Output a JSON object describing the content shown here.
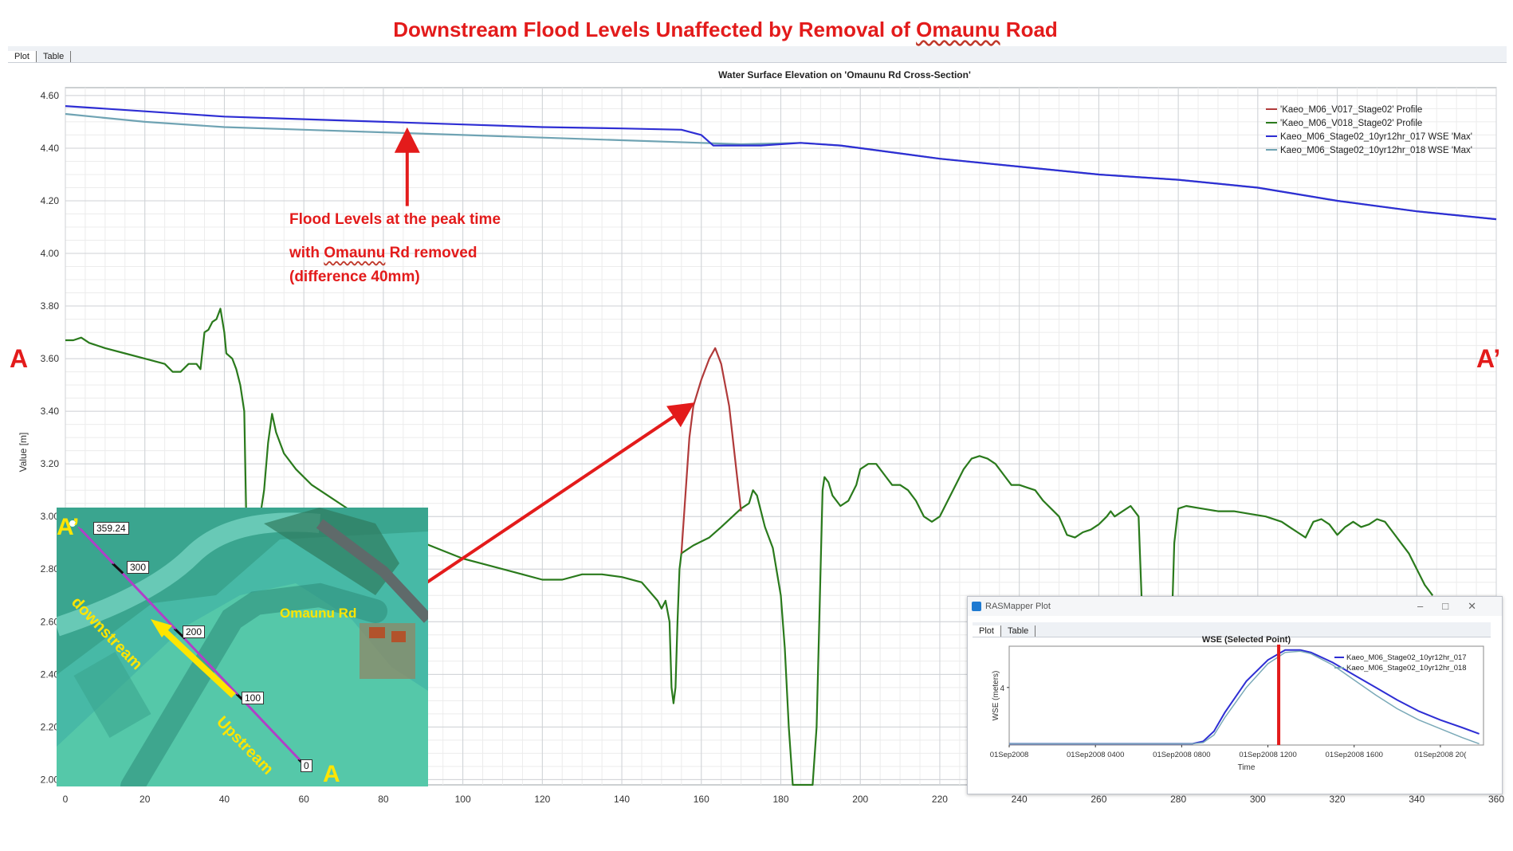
{
  "banner": {
    "pre": "Downstream Flood Levels Unaffected by Removal of ",
    "road": "Omaunu",
    "post": " Road"
  },
  "tabs": {
    "plot": "Plot",
    "table": "Table"
  },
  "labels": {
    "a": "A",
    "a_prime": "A’"
  },
  "annotation": {
    "line1": "Flood Levels at the peak time",
    "line2_pre": "with  ",
    "line2_road": "Omaunu",
    "line2_post": "  Rd removed",
    "line3": "(difference 40mm)"
  },
  "inset": {
    "ticks": [
      "359.24",
      "300",
      "200",
      "100",
      "0"
    ],
    "a_prime": "A’",
    "a": "A",
    "downstream": "downstream",
    "upstream": "Upstream",
    "road_label": "Omaunu  Rd",
    "colors": {
      "water": "#4bbfb0",
      "field": "#57c7a8",
      "line": "#b040c8",
      "yellow": "#ffe500"
    }
  },
  "mini": {
    "window_title": "RASMapper Plot",
    "tabs": {
      "plot": "Plot",
      "table": "Table"
    }
  },
  "chart_data": [
    {
      "type": "line",
      "title": "Water Surface Elevation on 'Omaunu Rd Cross-Section'",
      "xlabel": "",
      "ylabel": "Value [m]",
      "xlim": [
        0,
        360
      ],
      "ylim": [
        1.98,
        4.63
      ],
      "xticks": [
        0,
        20,
        40,
        60,
        80,
        100,
        120,
        140,
        160,
        180,
        200,
        220,
        240,
        260,
        280,
        300,
        320,
        340,
        360
      ],
      "yticks": [
        2.0,
        2.2,
        2.4,
        2.6,
        2.8,
        3.0,
        3.2,
        3.4,
        3.6,
        3.8,
        4.0,
        4.2,
        4.4,
        4.6
      ],
      "grid": true,
      "legend_position": "top-right",
      "series": [
        {
          "name": "'Kaeo_M06_V017_Stage02' Profile",
          "color": "#b03a3a",
          "points": [
            [
              155,
              2.86
            ],
            [
              157,
              3.3
            ],
            [
              158,
              3.42
            ],
            [
              160,
              3.52
            ],
            [
              162,
              3.6
            ],
            [
              163.5,
              3.64
            ],
            [
              165,
              3.58
            ],
            [
              167,
              3.42
            ],
            [
              169,
              3.15
            ],
            [
              170,
              3.02
            ]
          ]
        },
        {
          "name": "'Kaeo_M06_V018_Stage02' Profile",
          "color": "#2a7a1c",
          "points": [
            [
              0,
              3.67
            ],
            [
              2,
              3.67
            ],
            [
              4,
              3.68
            ],
            [
              6,
              3.66
            ],
            [
              10,
              3.64
            ],
            [
              15,
              3.62
            ],
            [
              20,
              3.6
            ],
            [
              25,
              3.58
            ],
            [
              27,
              3.55
            ],
            [
              29,
              3.55
            ],
            [
              31,
              3.58
            ],
            [
              33,
              3.58
            ],
            [
              34,
              3.56
            ],
            [
              35,
              3.7
            ],
            [
              36,
              3.71
            ],
            [
              37,
              3.74
            ],
            [
              38,
              3.75
            ],
            [
              39,
              3.79
            ],
            [
              40,
              3.7
            ],
            [
              40.5,
              3.62
            ],
            [
              42,
              3.6
            ],
            [
              43,
              3.56
            ],
            [
              44,
              3.5
            ],
            [
              45,
              3.4
            ],
            [
              45.5,
              3.0
            ],
            [
              46,
              2.4
            ],
            [
              46.5,
              2.1
            ],
            [
              47,
              2.1
            ],
            [
              48,
              2.6
            ],
            [
              49,
              3.0
            ],
            [
              50,
              3.1
            ],
            [
              51,
              3.28
            ],
            [
              52,
              3.39
            ],
            [
              53,
              3.32
            ],
            [
              55,
              3.24
            ],
            [
              58,
              3.18
            ],
            [
              62,
              3.12
            ],
            [
              66,
              3.08
            ],
            [
              70,
              3.04
            ],
            [
              74,
              3.0
            ],
            [
              78,
              2.96
            ],
            [
              82,
              2.94
            ],
            [
              86,
              2.92
            ],
            [
              90,
              2.9
            ],
            [
              95,
              2.87
            ],
            [
              100,
              2.84
            ],
            [
              105,
              2.82
            ],
            [
              110,
              2.8
            ],
            [
              115,
              2.78
            ],
            [
              120,
              2.76
            ],
            [
              125,
              2.76
            ],
            [
              130,
              2.78
            ],
            [
              135,
              2.78
            ],
            [
              140,
              2.77
            ],
            [
              145,
              2.75
            ],
            [
              149,
              2.68
            ],
            [
              150,
              2.65
            ],
            [
              151,
              2.68
            ],
            [
              152,
              2.6
            ],
            [
              152.5,
              2.35
            ],
            [
              153,
              2.29
            ],
            [
              153.5,
              2.35
            ],
            [
              154,
              2.6
            ],
            [
              154.5,
              2.8
            ],
            [
              155,
              2.86
            ],
            [
              158,
              2.89
            ],
            [
              162,
              2.92
            ],
            [
              165,
              2.96
            ],
            [
              170,
              3.03
            ],
            [
              172,
              3.05
            ],
            [
              173,
              3.1
            ],
            [
              174,
              3.08
            ],
            [
              176,
              2.96
            ],
            [
              178,
              2.88
            ],
            [
              180,
              2.7
            ],
            [
              181,
              2.5
            ],
            [
              182,
              2.2
            ],
            [
              183,
              1.98
            ],
            [
              185,
              1.98
            ],
            [
              186,
              1.98
            ],
            [
              187,
              1.98
            ],
            [
              188,
              1.98
            ],
            [
              189,
              2.2
            ],
            [
              190,
              2.8
            ],
            [
              190.5,
              3.1
            ],
            [
              191,
              3.15
            ],
            [
              192,
              3.13
            ],
            [
              193,
              3.08
            ],
            [
              195,
              3.04
            ],
            [
              197,
              3.06
            ],
            [
              199,
              3.12
            ],
            [
              200,
              3.18
            ],
            [
              202,
              3.2
            ],
            [
              204,
              3.2
            ],
            [
              206,
              3.16
            ],
            [
              208,
              3.12
            ],
            [
              210,
              3.12
            ],
            [
              212,
              3.1
            ],
            [
              214,
              3.06
            ],
            [
              216,
              3.0
            ],
            [
              218,
              2.98
            ],
            [
              220,
              3.0
            ],
            [
              222,
              3.06
            ],
            [
              224,
              3.12
            ],
            [
              226,
              3.18
            ],
            [
              228,
              3.22
            ],
            [
              230,
              3.23
            ],
            [
              232,
              3.22
            ],
            [
              234,
              3.2
            ],
            [
              236,
              3.16
            ],
            [
              238,
              3.12
            ],
            [
              240,
              3.12
            ],
            [
              242,
              3.11
            ],
            [
              244,
              3.1
            ],
            [
              246,
              3.06
            ],
            [
              248,
              3.03
            ],
            [
              250,
              3.0
            ],
            [
              252,
              2.93
            ],
            [
              254,
              2.92
            ],
            [
              256,
              2.94
            ],
            [
              258,
              2.95
            ],
            [
              260,
              2.97
            ],
            [
              262,
              3.0
            ],
            [
              263,
              3.02
            ],
            [
              264,
              3.0
            ],
            [
              266,
              3.02
            ],
            [
              268,
              3.04
            ],
            [
              269,
              3.02
            ],
            [
              270,
              3.0
            ],
            [
              271,
              2.6
            ],
            [
              272,
              2.2
            ],
            [
              274,
              2.05
            ],
            [
              276,
              2.1
            ],
            [
              278,
              2.4
            ],
            [
              279,
              2.9
            ],
            [
              280,
              3.03
            ],
            [
              282,
              3.04
            ],
            [
              286,
              3.03
            ],
            [
              290,
              3.02
            ],
            [
              294,
              3.02
            ],
            [
              298,
              3.01
            ],
            [
              302,
              3.0
            ],
            [
              306,
              2.98
            ],
            [
              308,
              2.96
            ],
            [
              310,
              2.94
            ],
            [
              312,
              2.92
            ],
            [
              314,
              2.98
            ],
            [
              316,
              2.99
            ],
            [
              318,
              2.97
            ],
            [
              320,
              2.93
            ],
            [
              322,
              2.96
            ],
            [
              324,
              2.98
            ],
            [
              326,
              2.96
            ],
            [
              328,
              2.97
            ],
            [
              330,
              2.99
            ],
            [
              332,
              2.98
            ],
            [
              334,
              2.94
            ],
            [
              336,
              2.9
            ],
            [
              338,
              2.86
            ],
            [
              340,
              2.8
            ],
            [
              342,
              2.74
            ],
            [
              344,
              2.7
            ]
          ]
        },
        {
          "name": "Kaeo_M06_Stage02_10yr12hr_017 WSE 'Max'",
          "color": "#2e2ed4",
          "points": [
            [
              0,
              4.56
            ],
            [
              20,
              4.54
            ],
            [
              40,
              4.52
            ],
            [
              60,
              4.51
            ],
            [
              80,
              4.5
            ],
            [
              100,
              4.49
            ],
            [
              120,
              4.48
            ],
            [
              140,
              4.475
            ],
            [
              155,
              4.47
            ],
            [
              160,
              4.45
            ],
            [
              163,
              4.41
            ],
            [
              168,
              4.41
            ],
            [
              175,
              4.41
            ],
            [
              185,
              4.42
            ],
            [
              195,
              4.41
            ],
            [
              200,
              4.4
            ],
            [
              220,
              4.36
            ],
            [
              240,
              4.33
            ],
            [
              260,
              4.3
            ],
            [
              280,
              4.28
            ],
            [
              300,
              4.25
            ],
            [
              320,
              4.2
            ],
            [
              340,
              4.16
            ],
            [
              360,
              4.13
            ]
          ]
        },
        {
          "name": "Kaeo_M06_Stage02_10yr12hr_018 WSE 'Max'",
          "color": "#6fa3b3",
          "points": [
            [
              0,
              4.53
            ],
            [
              20,
              4.5
            ],
            [
              40,
              4.48
            ],
            [
              60,
              4.47
            ],
            [
              80,
              4.46
            ],
            [
              100,
              4.45
            ],
            [
              120,
              4.44
            ],
            [
              140,
              4.43
            ],
            [
              160,
              4.42
            ],
            [
              170,
              4.415
            ],
            [
              185,
              4.42
            ],
            [
              195,
              4.41
            ],
            [
              200,
              4.4
            ],
            [
              220,
              4.36
            ],
            [
              240,
              4.33
            ],
            [
              260,
              4.3
            ],
            [
              280,
              4.28
            ],
            [
              300,
              4.25
            ],
            [
              320,
              4.2
            ],
            [
              340,
              4.16
            ],
            [
              360,
              4.13
            ]
          ]
        }
      ]
    },
    {
      "type": "line",
      "title": "WSE (Selected Point)",
      "xlabel": "Time",
      "ylabel": "WSE (meters)",
      "x_tick_labels": [
        "01Sep2008",
        "01Sep2008 0400",
        "01Sep2008 0800",
        "01Sep2008 1200",
        "01Sep2008 1600",
        "01Sep2008 20("
      ],
      "ylim": [
        3.54,
        4.33
      ],
      "y_tick_labels": [
        "4"
      ],
      "legend_position": "top-right",
      "marker_time": "01Sep2008 1230",
      "series": [
        {
          "name": "Kaeo_M06_Stage02_10yr12hr_017",
          "color": "#2e2ed4",
          "points": [
            [
              0,
              3.55
            ],
            [
              8.5,
              3.55
            ],
            [
              9,
              3.57
            ],
            [
              9.5,
              3.65
            ],
            [
              10,
              3.8
            ],
            [
              11,
              4.05
            ],
            [
              12,
              4.22
            ],
            [
              12.8,
              4.3
            ],
            [
              13.5,
              4.3
            ],
            [
              14,
              4.28
            ],
            [
              15,
              4.2
            ],
            [
              16,
              4.1
            ],
            [
              17,
              4.0
            ],
            [
              18,
              3.9
            ],
            [
              19,
              3.81
            ],
            [
              20,
              3.74
            ],
            [
              21,
              3.68
            ],
            [
              21.8,
              3.63
            ]
          ]
        },
        {
          "name": "Kaeo_M06_Stage02_10yr12hr_018",
          "color": "#7aa9b8",
          "points": [
            [
              0,
              3.55
            ],
            [
              8.5,
              3.55
            ],
            [
              9,
              3.56
            ],
            [
              9.5,
              3.62
            ],
            [
              10,
              3.76
            ],
            [
              11,
              4.0
            ],
            [
              12,
              4.19
            ],
            [
              12.8,
              4.28
            ],
            [
              13.5,
              4.29
            ],
            [
              14,
              4.27
            ],
            [
              15,
              4.18
            ],
            [
              16,
              4.06
            ],
            [
              17,
              3.94
            ],
            [
              18,
              3.83
            ],
            [
              19,
              3.74
            ],
            [
              20,
              3.67
            ],
            [
              21,
              3.6
            ],
            [
              21.8,
              3.55
            ]
          ]
        }
      ]
    }
  ]
}
